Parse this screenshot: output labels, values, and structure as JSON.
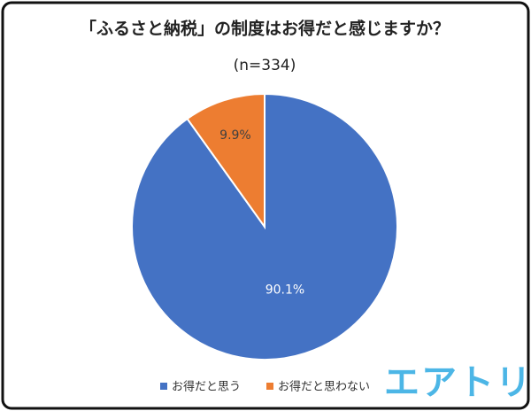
{
  "chart_data": {
    "type": "pie",
    "title": "「ふるさと納税」の制度はお得だと感じますか？",
    "subtitle": "(n=334)",
    "categories": [
      "お得だと思う",
      "お得だと思わない"
    ],
    "values": [
      90.1,
      9.9
    ],
    "value_labels": [
      "90.1%",
      "9.9%"
    ],
    "colors": [
      "#4472c4",
      "#ed7d31"
    ],
    "legend": "bottom"
  },
  "logo": "エアトリ"
}
